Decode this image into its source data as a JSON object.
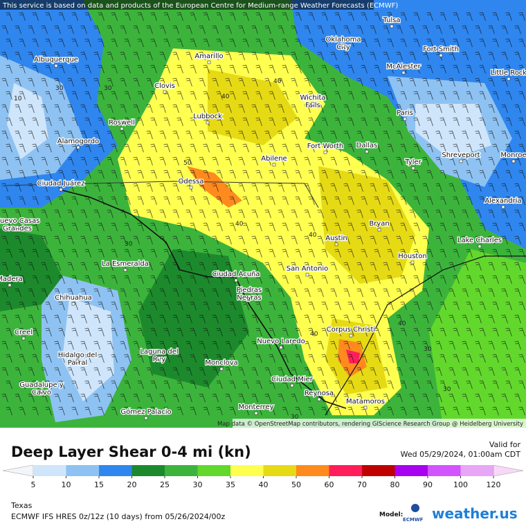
{
  "banner": "This service is based on data and products of the European Centre for Medium-range Weather Forecasts (ECMWF)",
  "attribution": "Map data © OpenStreetMap contributors, rendering GIScience Research Group @ Heidelberg University",
  "cities": [
    "Tulsa",
    "Oklahoma City",
    "Fort Smith",
    "Albuquerque",
    "McAlester",
    "Little Rock",
    "Amarillo",
    "Clovis",
    "Wichita Falls",
    "Paris",
    "Lubbock",
    "Roswell",
    "Alamogordo",
    "Fort Worth",
    "Dallas",
    "Shreveport",
    "Monroe",
    "Abilene",
    "Tyler",
    "Ciudad Juárez",
    "Odessa",
    "Alexandria",
    "Nuevo Casas Grandes",
    "Bryan",
    "Austin",
    "Lake Charles",
    "Houston",
    "La Esmeralda",
    "San Antonio",
    "Ciudad Acuña",
    "Piedras Negras",
    "Madera",
    "Chihuahua",
    "Creel",
    "Corpus Christi",
    "Nuevo Laredo",
    "Hidalgo del Parral",
    "Laguna del Rey",
    "Monclova",
    "Guadalupe y Calvo",
    "Ciudad Mier",
    "Reynosa",
    "Matamoros",
    "Gómez Palacio",
    "Monterrey"
  ],
  "contour_labels": [
    30,
    10,
    40,
    40,
    50,
    40,
    40,
    30,
    40,
    40,
    30,
    30,
    30,
    30
  ],
  "legend": {
    "title": "Deep Layer Shear 0-4 mi (kn)",
    "valid_label": "Valid for",
    "valid_time": "Wed 05/29/2024, 01:00am CDT",
    "ticks": [
      5,
      10,
      15,
      20,
      25,
      30,
      35,
      40,
      50,
      60,
      70,
      80,
      90,
      100,
      120
    ],
    "colors": [
      "#f2f6fb",
      "#cfe5fb",
      "#8ec2f2",
      "#2f86ee",
      "#1c8a2c",
      "#3cb43c",
      "#62d82c",
      "#ffff50",
      "#e6da14",
      "#ff8a1e",
      "#ff1e5a",
      "#c00000",
      "#a800f0",
      "#d254ff",
      "#e8a6f6",
      "#f8d8f8"
    ]
  },
  "footer": {
    "region": "Texas",
    "model_run": "ECMWF IFS HRES 0z/12z (10 days) from  05/26/2024/00z",
    "model_label": "Model:",
    "model_name": "ECMWF",
    "brand": "weather.us"
  }
}
